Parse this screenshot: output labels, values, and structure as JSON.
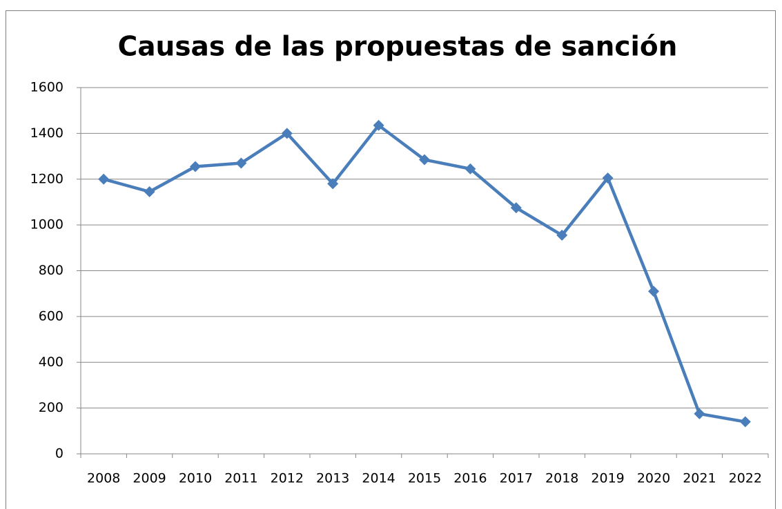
{
  "chart_data": {
    "type": "line",
    "title": "Causas de las propuestas de sanción",
    "categories": [
      "2008",
      "2009",
      "2010",
      "2011",
      "2012",
      "2013",
      "2014",
      "2015",
      "2016",
      "2017",
      "2018",
      "2019",
      "2020",
      "2021",
      "2022"
    ],
    "series": [
      {
        "name": null,
        "color": "#4a7ebb",
        "values": [
          1200,
          1145,
          1255,
          1270,
          1400,
          1180,
          1435,
          1285,
          1245,
          1075,
          955,
          1205,
          710,
          175,
          140
        ]
      }
    ],
    "ylim": [
      0,
      1600
    ],
    "yticks": [
      0,
      200,
      400,
      600,
      800,
      1000,
      1200,
      1400,
      1600
    ],
    "grid": true
  }
}
